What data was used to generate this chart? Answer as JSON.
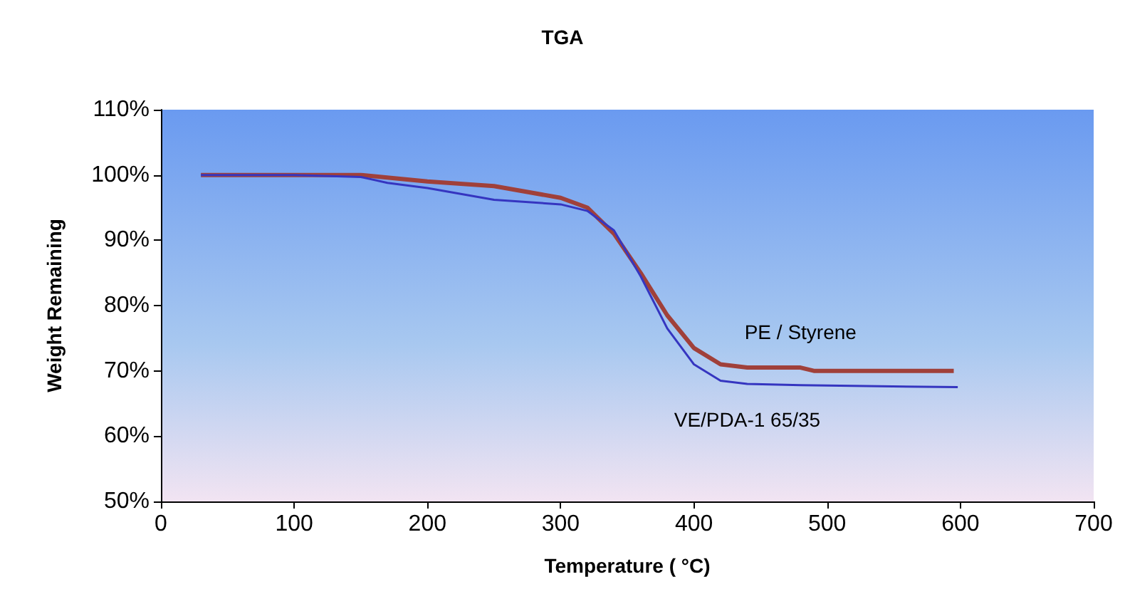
{
  "chart_data": {
    "type": "line",
    "title": "TGA",
    "xlabel": "Temperature ( °C)",
    "ylabel": "Weight Remaining",
    "xlim": [
      0,
      700
    ],
    "xticks": [
      0,
      100,
      200,
      300,
      400,
      500,
      600,
      700
    ],
    "ylim": [
      50,
      110
    ],
    "yticks": [
      {
        "value": 50,
        "label": "50%"
      },
      {
        "value": 60,
        "label": "60%"
      },
      {
        "value": 70,
        "label": "70%"
      },
      {
        "value": 80,
        "label": "80%"
      },
      {
        "value": 90,
        "label": "90%"
      },
      {
        "value": 100,
        "label": "100%"
      },
      {
        "value": 110,
        "label": "110%"
      }
    ],
    "grid": false,
    "legend": false,
    "marker": "none",
    "line_style": "solid",
    "series": [
      {
        "name": "PE / Styrene",
        "color": "#a0403a",
        "x": [
          30,
          100,
          150,
          200,
          250,
          300,
          320,
          340,
          360,
          380,
          400,
          420,
          440,
          480,
          490,
          595
        ],
        "values": [
          100,
          100,
          100,
          99,
          98.3,
          96.5,
          95,
          91,
          85,
          78.5,
          73.5,
          71,
          70.5,
          70.5,
          70,
          70
        ]
      },
      {
        "name": "VE/PDA-1 65/35",
        "color": "#3535c0",
        "x": [
          30,
          100,
          150,
          170,
          200,
          250,
          300,
          320,
          340,
          360,
          380,
          400,
          420,
          440,
          480,
          598
        ],
        "values": [
          100,
          100,
          99.7,
          98.8,
          98,
          96.2,
          95.5,
          94.5,
          91.5,
          84.5,
          76.5,
          71,
          68.5,
          68,
          67.8,
          67.5
        ]
      }
    ]
  }
}
